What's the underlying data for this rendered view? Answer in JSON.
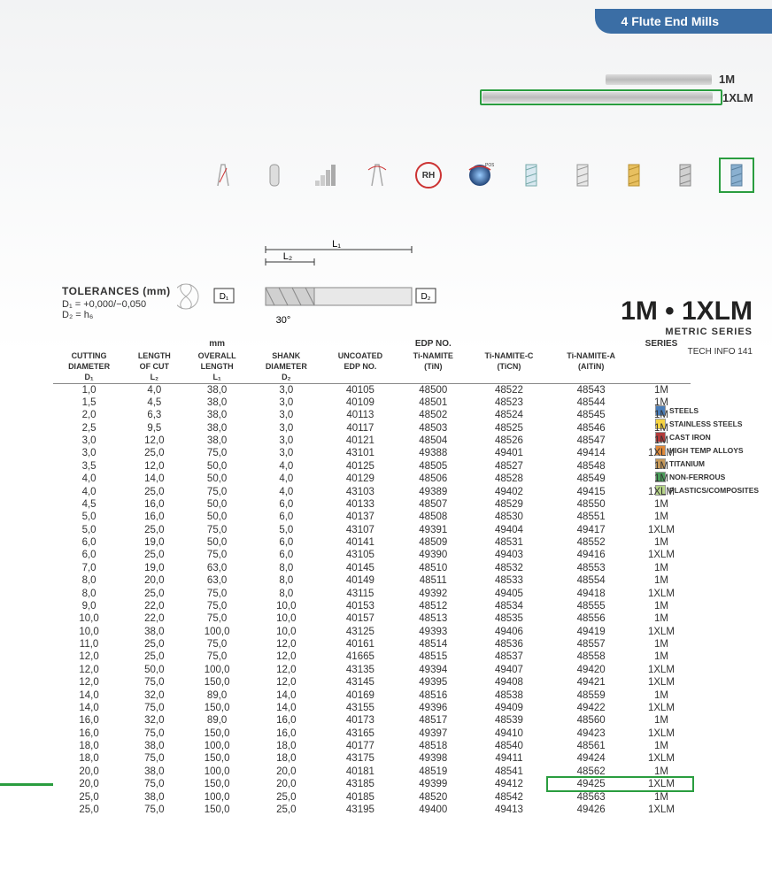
{
  "header": {
    "title": "4 Flute End Mills"
  },
  "tool_variants": [
    {
      "label": "1M",
      "bar": "short",
      "highlighted": false
    },
    {
      "label": "1XLM",
      "bar": "long",
      "highlighted": true
    }
  ],
  "icon_strip": {
    "selected_index": 10,
    "icons": [
      "flute",
      "cyl",
      "step",
      "angle",
      "RH",
      "sphere",
      "hatch1",
      "hatch2",
      "gold",
      "gray",
      "blue"
    ]
  },
  "diagram": {
    "labels": {
      "L1": "L₁",
      "L2": "L₂",
      "D1": "D₁",
      "D2": "D₂",
      "angle": "30°"
    }
  },
  "tolerances": {
    "title": "TOLERANCES (mm)",
    "lines": [
      "D₁ = +0,000/−0,050",
      "D₂ = h₆"
    ]
  },
  "series_title": {
    "big": "1M • 1XLM",
    "sub": "METRIC SERIES"
  },
  "tech_info": "TECH INFO 141",
  "table": {
    "group_headers": {
      "mm": "mm",
      "edp": "EDP NO.",
      "series": "SERIES"
    },
    "columns": [
      {
        "l1": "CUTTING",
        "l2": "DIAMETER",
        "l3": "D₁"
      },
      {
        "l1": "LENGTH",
        "l2": "OF CUT",
        "l3": "L₂"
      },
      {
        "l1": "OVERALL",
        "l2": "LENGTH",
        "l3": "L₁"
      },
      {
        "l1": "SHANK",
        "l2": "DIAMETER",
        "l3": "D₂"
      },
      {
        "l1": "UNCOATED",
        "l2": "EDP NO.",
        "l3": ""
      },
      {
        "l1": "Ti-NAMITE",
        "l2": "(TiN)",
        "l3": ""
      },
      {
        "l1": "Ti-NAMITE-C",
        "l2": "(TiCN)",
        "l3": ""
      },
      {
        "l1": "Ti-NAMITE-A",
        "l2": "(AlTiN)",
        "l3": ""
      },
      {
        "l1": "",
        "l2": "",
        "l3": ""
      }
    ],
    "rows": [
      [
        "1,0",
        "4,0",
        "38,0",
        "3,0",
        "40105",
        "48500",
        "48522",
        "48543",
        "1M"
      ],
      [
        "1,5",
        "4,5",
        "38,0",
        "3,0",
        "40109",
        "48501",
        "48523",
        "48544",
        "1M"
      ],
      [
        "2,0",
        "6,3",
        "38,0",
        "3,0",
        "40113",
        "48502",
        "48524",
        "48545",
        "1M"
      ],
      [
        "2,5",
        "9,5",
        "38,0",
        "3,0",
        "40117",
        "48503",
        "48525",
        "48546",
        "1M"
      ],
      [
        "3,0",
        "12,0",
        "38,0",
        "3,0",
        "40121",
        "48504",
        "48526",
        "48547",
        "1M"
      ],
      [
        "3,0",
        "25,0",
        "75,0",
        "3,0",
        "43101",
        "49388",
        "49401",
        "49414",
        "1XLM"
      ],
      [
        "3,5",
        "12,0",
        "50,0",
        "4,0",
        "40125",
        "48505",
        "48527",
        "48548",
        "1M"
      ],
      [
        "4,0",
        "14,0",
        "50,0",
        "4,0",
        "40129",
        "48506",
        "48528",
        "48549",
        "1M"
      ],
      [
        "4,0",
        "25,0",
        "75,0",
        "4,0",
        "43103",
        "49389",
        "49402",
        "49415",
        "1XLM"
      ],
      [
        "4,5",
        "16,0",
        "50,0",
        "6,0",
        "40133",
        "48507",
        "48529",
        "48550",
        "1M"
      ],
      [
        "5,0",
        "16,0",
        "50,0",
        "6,0",
        "40137",
        "48508",
        "48530",
        "48551",
        "1M"
      ],
      [
        "5,0",
        "25,0",
        "75,0",
        "5,0",
        "43107",
        "49391",
        "49404",
        "49417",
        "1XLM"
      ],
      [
        "6,0",
        "19,0",
        "50,0",
        "6,0",
        "40141",
        "48509",
        "48531",
        "48552",
        "1M"
      ],
      [
        "6,0",
        "25,0",
        "75,0",
        "6,0",
        "43105",
        "49390",
        "49403",
        "49416",
        "1XLM"
      ],
      [
        "7,0",
        "19,0",
        "63,0",
        "8,0",
        "40145",
        "48510",
        "48532",
        "48553",
        "1M"
      ],
      [
        "8,0",
        "20,0",
        "63,0",
        "8,0",
        "40149",
        "48511",
        "48533",
        "48554",
        "1M"
      ],
      [
        "8,0",
        "25,0",
        "75,0",
        "8,0",
        "43115",
        "49392",
        "49405",
        "49418",
        "1XLM"
      ],
      [
        "9,0",
        "22,0",
        "75,0",
        "10,0",
        "40153",
        "48512",
        "48534",
        "48555",
        "1M"
      ],
      [
        "10,0",
        "22,0",
        "75,0",
        "10,0",
        "40157",
        "48513",
        "48535",
        "48556",
        "1M"
      ],
      [
        "10,0",
        "38,0",
        "100,0",
        "10,0",
        "43125",
        "49393",
        "49406",
        "49419",
        "1XLM"
      ],
      [
        "11,0",
        "25,0",
        "75,0",
        "12,0",
        "40161",
        "48514",
        "48536",
        "48557",
        "1M"
      ],
      [
        "12,0",
        "25,0",
        "75,0",
        "12,0",
        "41665",
        "48515",
        "48537",
        "48558",
        "1M"
      ],
      [
        "12,0",
        "50,0",
        "100,0",
        "12,0",
        "43135",
        "49394",
        "49407",
        "49420",
        "1XLM"
      ],
      [
        "12,0",
        "75,0",
        "150,0",
        "12,0",
        "43145",
        "49395",
        "49408",
        "49421",
        "1XLM"
      ],
      [
        "14,0",
        "32,0",
        "89,0",
        "14,0",
        "40169",
        "48516",
        "48538",
        "48559",
        "1M"
      ],
      [
        "14,0",
        "75,0",
        "150,0",
        "14,0",
        "43155",
        "49396",
        "49409",
        "49422",
        "1XLM"
      ],
      [
        "16,0",
        "32,0",
        "89,0",
        "16,0",
        "40173",
        "48517",
        "48539",
        "48560",
        "1M"
      ],
      [
        "16,0",
        "75,0",
        "150,0",
        "16,0",
        "43165",
        "49397",
        "49410",
        "49423",
        "1XLM"
      ],
      [
        "18,0",
        "38,0",
        "100,0",
        "18,0",
        "40177",
        "48518",
        "48540",
        "48561",
        "1M"
      ],
      [
        "18,0",
        "75,0",
        "150,0",
        "18,0",
        "43175",
        "49398",
        "49411",
        "49424",
        "1XLM"
      ],
      [
        "20,0",
        "38,0",
        "100,0",
        "20,0",
        "40181",
        "48519",
        "48541",
        "48562",
        "1M"
      ],
      [
        "20,0",
        "75,0",
        "150,0",
        "20,0",
        "43185",
        "49399",
        "49412",
        "49425",
        "1XLM"
      ],
      [
        "25,0",
        "38,0",
        "100,0",
        "25,0",
        "40185",
        "48520",
        "48542",
        "48563",
        "1M"
      ],
      [
        "25,0",
        "75,0",
        "150,0",
        "25,0",
        "43195",
        "49400",
        "49413",
        "49426",
        "1XLM"
      ]
    ],
    "highlighted_row_index": 31
  },
  "materials": [
    {
      "label": "STEELS",
      "color": "#4a7db8"
    },
    {
      "label": "STAINLESS STEELS",
      "color": "#f5d342"
    },
    {
      "label": "CAST IRON",
      "color": "#b23a3a"
    },
    {
      "label": "HIGH TEMP ALLOYS",
      "color": "#e08a3a"
    },
    {
      "label": "TITANIUM",
      "color": "#c79a5a"
    },
    {
      "label": "NON-FERROUS",
      "color": "#4a9d5a"
    },
    {
      "label": "PLASTICS/COMPOSITES",
      "color": "#b8d68a"
    }
  ],
  "colors": {
    "highlight_green": "#2a9d3f",
    "header_blue": "#3b6ea5"
  }
}
